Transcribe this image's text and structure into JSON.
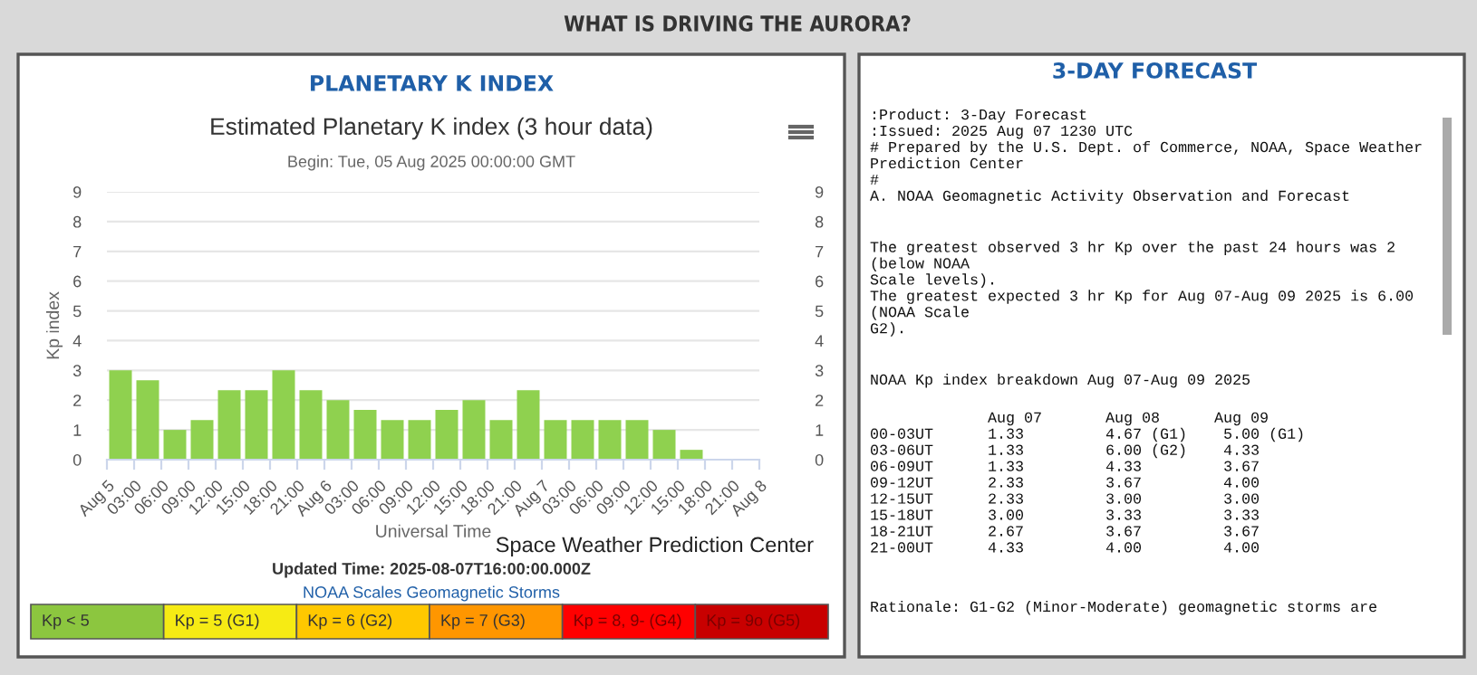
{
  "chart_data": [
    {
      "type": "bar",
      "title": "Estimated Planetary K index (3 hour data)",
      "subtitle": "Begin: Tue, 05 Aug 2025 00:00:00 GMT",
      "xlabel": "Universal Time",
      "ylabel": "Kp index",
      "annotations": [
        "WHAT IS DRIVING THE AURORA?",
        "PLANETARY K INDEX",
        "Space Weather Prediction Center",
        "Updated Time: 2025-08-07T16:00:00.000Z",
        "NOAA Scales Geomagnetic Storms",
        "Kp < 5",
        "Kp = 5 (G1)",
        "Kp = 6 (G2)",
        "Kp = 7 (G3)",
        "Kp = 8, 9- (G4)",
        "Kp = 9o (G5)"
      ],
      "x": [
        "2025-08-05T01:30",
        "2025-08-05T04:30",
        "2025-08-05T07:30",
        "2025-08-05T10:30",
        "2025-08-05T13:30",
        "2025-08-05T16:30",
        "2025-08-05T19:30",
        "2025-08-05T22:30",
        "2025-08-06T01:30",
        "2025-08-06T04:30",
        "2025-08-06T07:30",
        "2025-08-06T10:30",
        "2025-08-06T13:30",
        "2025-08-06T16:30",
        "2025-08-06T19:30",
        "2025-08-06T22:30",
        "2025-08-07T01:30",
        "2025-08-07T04:30",
        "2025-08-07T07:30",
        "2025-08-07T10:30",
        "2025-08-07T13:30",
        "2025-08-07T16:30"
      ],
      "series": [
        {
          "color": "#8fd14f",
          "values": [
            3,
            2.67,
            1,
            1.33,
            2.33,
            2.33,
            3,
            2.33,
            2,
            1.67,
            1.33,
            1.33,
            1.67,
            2,
            1.33,
            2.33,
            1.33,
            1.33,
            1.33,
            1.33,
            1,
            0.33
          ]
        }
      ],
      "xlim": [
        "2025-08-05T00:00",
        "2025-08-08T00:00"
      ],
      "xticks": [
        {
          "value": "2025-08-05T00:00",
          "label": "Aug 5"
        },
        {
          "value": "2025-08-05T03:00",
          "label": "03:00"
        },
        {
          "value": "2025-08-05T06:00",
          "label": "06:00"
        },
        {
          "value": "2025-08-05T09:00",
          "label": "09:00"
        },
        {
          "value": "2025-08-05T12:00",
          "label": "12:00"
        },
        {
          "value": "2025-08-05T15:00",
          "label": "15:00"
        },
        {
          "value": "2025-08-05T18:00",
          "label": "18:00"
        },
        {
          "value": "2025-08-05T21:00",
          "label": "21:00"
        },
        {
          "value": "2025-08-06T00:00",
          "label": "Aug 6"
        },
        {
          "value": "2025-08-06T03:00",
          "label": "03:00"
        },
        {
          "value": "2025-08-06T06:00",
          "label": "06:00"
        },
        {
          "value": "2025-08-06T09:00",
          "label": "09:00"
        },
        {
          "value": "2025-08-06T12:00",
          "label": "12:00"
        },
        {
          "value": "2025-08-06T15:00",
          "label": "15:00"
        },
        {
          "value": "2025-08-06T18:00",
          "label": "18:00"
        },
        {
          "value": "2025-08-06T21:00",
          "label": "21:00"
        },
        {
          "value": "2025-08-07T00:00",
          "label": "Aug 7"
        },
        {
          "value": "2025-08-07T03:00",
          "label": "03:00"
        },
        {
          "value": "2025-08-07T06:00",
          "label": "06:00"
        },
        {
          "value": "2025-08-07T09:00",
          "label": "09:00"
        },
        {
          "value": "2025-08-07T12:00",
          "label": "12:00"
        },
        {
          "value": "2025-08-07T15:00",
          "label": "15:00"
        },
        {
          "value": "2025-08-07T18:00",
          "label": "18:00"
        },
        {
          "value": "2025-08-07T21:00",
          "label": "21:00"
        },
        {
          "value": "2025-08-08T00:00",
          "label": "Aug 8"
        }
      ],
      "ylim": [
        0,
        9
      ],
      "yticks": [
        0,
        1,
        2,
        3,
        4,
        5,
        6,
        7,
        8,
        9
      ],
      "y2lim": [
        0,
        9
      ],
      "y2ticks": [
        0,
        1,
        2,
        3,
        4,
        5,
        6,
        7,
        8,
        9
      ],
      "grid": "y"
    },
    {
      "type": "other",
      "title": "3-DAY FORECAST",
      "annotations": [
        ":Product: 3-Day Forecast\n:Issued: 2025 Aug 07 1230 UTC\n# Prepared by the U.S. Dept. of Commerce, NOAA, Space Weather\nPrediction Center\n#\nA. NOAA Geomagnetic Activity Observation and Forecast",
        "The greatest observed 3 hr Kp over the past 24 hours was 2\n(below NOAA\nScale levels).\nThe greatest expected 3 hr Kp for Aug 07-Aug 09 2025 is 6.00\n(NOAA Scale\nG2).",
        "NOAA Kp index breakdown Aug 07-Aug 09 2025",
        "             Aug 07       Aug 08      Aug 09\n00-03UT      1.33         4.67 (G1)    5.00 (G1)\n03-06UT      1.33         6.00 (G2)    4.33\n06-09UT      1.33         4.33         3.67\n09-12UT      2.33         3.67         4.00\n12-15UT      2.33         3.00         3.00\n15-18UT      3.00         3.33         3.33\n18-21UT      2.67         3.67         3.67\n21-00UT      4.33         4.00         4.00",
        "Rationale: G1-G2 (Minor-Moderate) geomagnetic storms are"
      ]
    }
  ]
}
